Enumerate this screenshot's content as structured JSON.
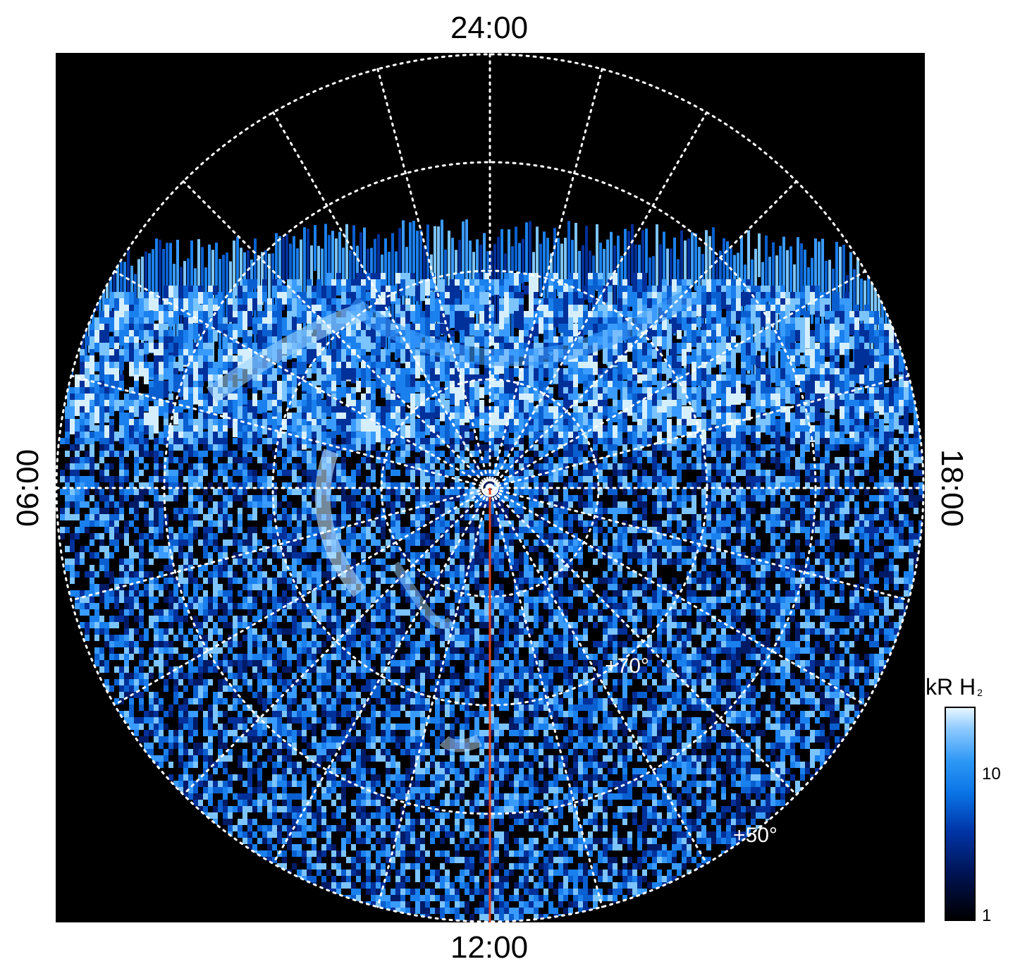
{
  "labels": {
    "top": "24:00",
    "bottom": "12:00",
    "left": "06:00",
    "right": "18:00"
  },
  "latitudes": {
    "inner": "+70°",
    "outer": "+50°"
  },
  "colorbar": {
    "title": "kR H",
    "title_sub": "2",
    "ticks": [
      "10",
      "1"
    ]
  },
  "colors": {
    "background": "#000000",
    "grid": "#ffffff",
    "meridian_line": "#e0401a"
  }
}
